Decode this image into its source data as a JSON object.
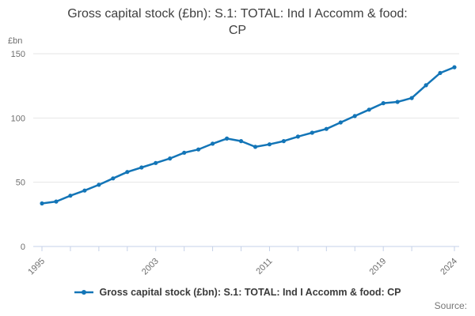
{
  "title_line1": "Gross capital stock (£bn): S.1: TOTAL: Ind I Accomm & food:",
  "title_line2": "CP",
  "y_unit": "£bn",
  "source_label": "Source:",
  "legend": {
    "label": "Gross capital stock (£bn): S.1: TOTAL: Ind I Accomm & food: CP"
  },
  "colors": {
    "line": "#1375b7",
    "grid": "#e6e6e6",
    "axis": "#c5d1e8",
    "tick_text": "#6e6e6e",
    "title_text": "#3f3f3f"
  },
  "chart_data": {
    "type": "line",
    "title": "Gross capital stock (£bn): S.1: TOTAL: Ind I Accomm & food: CP",
    "ylabel": "£bn",
    "xlabel": "",
    "grid": true,
    "legend_position": "bottom",
    "xlim": [
      1995,
      2024
    ],
    "ylim": [
      0,
      150
    ],
    "yticks": [
      0,
      50,
      100,
      150
    ],
    "xticks": [
      1995,
      1997,
      1999,
      2001,
      2003,
      2005,
      2007,
      2009,
      2011,
      2013,
      2015,
      2017,
      2019,
      2021,
      2024
    ],
    "xtick_labels": [
      1995,
      2003,
      2011,
      2019,
      2024
    ],
    "x": [
      1995,
      1996,
      1997,
      1998,
      1999,
      2000,
      2001,
      2002,
      2003,
      2004,
      2005,
      2006,
      2007,
      2008,
      2009,
      2010,
      2011,
      2012,
      2013,
      2014,
      2015,
      2016,
      2017,
      2018,
      2019,
      2020,
      2021,
      2022,
      2023,
      2024
    ],
    "series": [
      {
        "name": "Gross capital stock (£bn): S.1: TOTAL: Ind I Accomm & food: CP",
        "values": [
          33.5,
          35,
          39.5,
          43.5,
          48,
          53,
          58,
          61.5,
          65,
          68.5,
          73,
          75.5,
          80,
          84,
          82,
          77.5,
          79.5,
          82,
          85.5,
          88.5,
          91.5,
          96.5,
          101.5,
          106.5,
          111.5,
          112.5,
          115.5,
          125.5,
          135,
          139.5
        ]
      }
    ]
  }
}
